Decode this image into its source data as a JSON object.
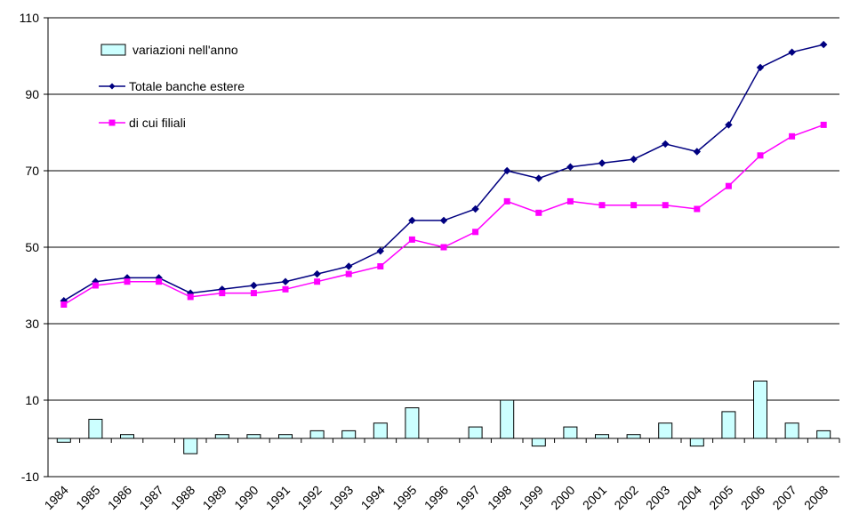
{
  "chart_data": {
    "type": "line",
    "categories": [
      "1984",
      "1985",
      "1986",
      "1987",
      "1988",
      "1989",
      "1990",
      "1991",
      "1992",
      "1993",
      "1994",
      "1995",
      "1996",
      "1997",
      "1998",
      "1999",
      "2000",
      "2001",
      "2002",
      "2003",
      "2004",
      "2005",
      "2006",
      "2007",
      "2008"
    ],
    "series": [
      {
        "name": "variazioni nell'anno",
        "type": "bar",
        "color": "#ccffff",
        "values": [
          -1,
          5,
          1,
          0,
          -4,
          1,
          1,
          1,
          2,
          2,
          4,
          8,
          0,
          3,
          10,
          -2,
          3,
          1,
          1,
          4,
          -2,
          7,
          15,
          4,
          2
        ]
      },
      {
        "name": "Totale banche estere",
        "type": "line",
        "marker": "diamond",
        "color": "#000080",
        "values": [
          36,
          41,
          42,
          42,
          38,
          39,
          40,
          41,
          43,
          45,
          49,
          57,
          57,
          60,
          70,
          68,
          71,
          72,
          73,
          77,
          75,
          82,
          97,
          101,
          103
        ]
      },
      {
        "name": "di cui filiali",
        "type": "line",
        "marker": "square",
        "color": "#ff00ff",
        "values": [
          35,
          40,
          41,
          41,
          37,
          38,
          38,
          39,
          41,
          43,
          45,
          52,
          50,
          54,
          62,
          59,
          62,
          61,
          61,
          61,
          60,
          66,
          74,
          79,
          82
        ]
      }
    ],
    "y_ticks": [
      -10,
      10,
      30,
      50,
      70,
      90,
      110
    ],
    "ylim": [
      -10,
      110
    ],
    "grid": "horizontal",
    "legend_position": "top-left"
  }
}
